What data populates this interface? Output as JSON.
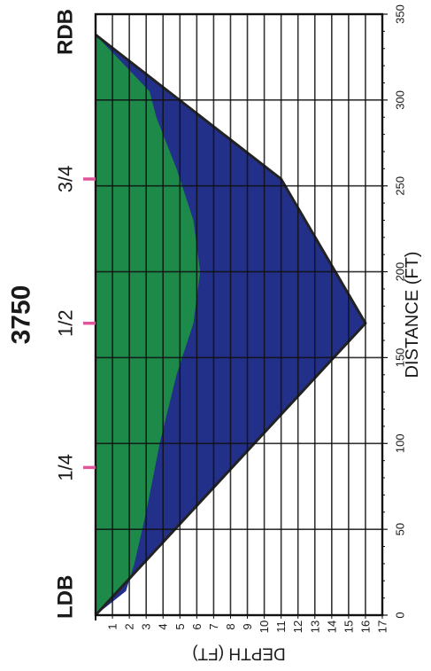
{
  "chart_data": {
    "type": "area",
    "title": "3750",
    "xlabel": "DISTANCE  (FT)",
    "ylabel": "DEPTH  (FT)",
    "xlim": [
      0,
      350
    ],
    "ylim": [
      0,
      17
    ],
    "x_ticks": [
      "0",
      "50",
      "100",
      "150",
      "200",
      "250",
      "300",
      "350"
    ],
    "y_ticks": [
      "1",
      "2",
      "3",
      "4",
      "5",
      "6",
      "7",
      "8",
      "9",
      "10",
      "11",
      "12",
      "13",
      "14",
      "15",
      "16",
      "17"
    ],
    "grid": true,
    "bank_labels": {
      "left": "LDB",
      "right": "RDB"
    },
    "station_markers": [
      {
        "label": "1/4",
        "x": 86
      },
      {
        "label": "1/2",
        "x": 170
      },
      {
        "label": "3/4",
        "x": 254
      }
    ],
    "series": [
      {
        "role": "cross-section",
        "color": "#1e8a4a",
        "x": [
          0,
          170,
          254,
          338
        ],
        "y": [
          0,
          16,
          11,
          0
        ]
      },
      {
        "role": "inner-region",
        "color": "#23308a",
        "x": [
          14,
          30,
          60,
          100,
          140,
          170,
          200,
          230,
          260,
          290,
          305,
          338,
          254,
          170,
          0
        ],
        "y": [
          1.8,
          2.3,
          3,
          3.8,
          4.8,
          5.8,
          6.2,
          5.8,
          4.8,
          3.6,
          3.2,
          0,
          11,
          16,
          0
        ]
      }
    ],
    "colors": {
      "outline": "#222222",
      "marker": "#e0559a",
      "grid": "#111111"
    }
  }
}
